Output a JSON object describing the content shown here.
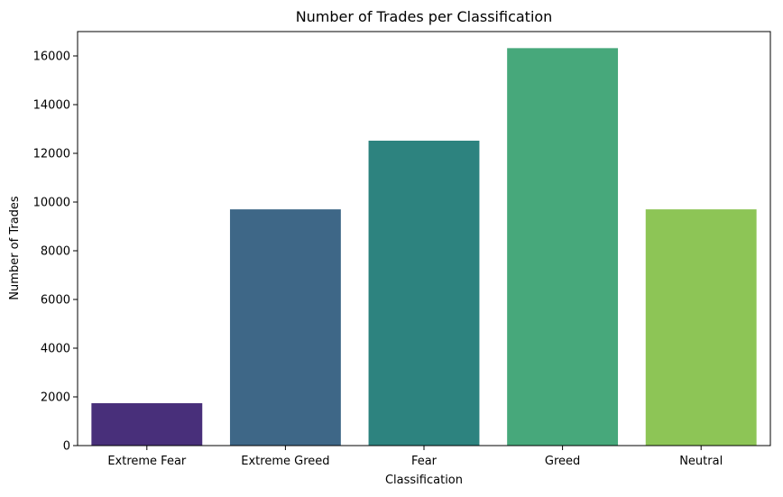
{
  "chart_data": {
    "type": "bar",
    "title": "Number of Trades per Classification",
    "xlabel": "Classification",
    "ylabel": "Number of Trades",
    "categories": [
      "Extreme Fear",
      "Extreme Greed",
      "Fear",
      "Greed",
      "Neutral"
    ],
    "values": [
      1740,
      9700,
      12520,
      16320,
      9700
    ],
    "colors": [
      "#482f7a",
      "#3e6787",
      "#2d837f",
      "#47a87b",
      "#8dc556"
    ],
    "ylim": [
      0,
      17000
    ],
    "yticks": [
      0,
      2000,
      4000,
      6000,
      8000,
      10000,
      12000,
      14000,
      16000
    ],
    "grid": false,
    "legend": "none"
  }
}
